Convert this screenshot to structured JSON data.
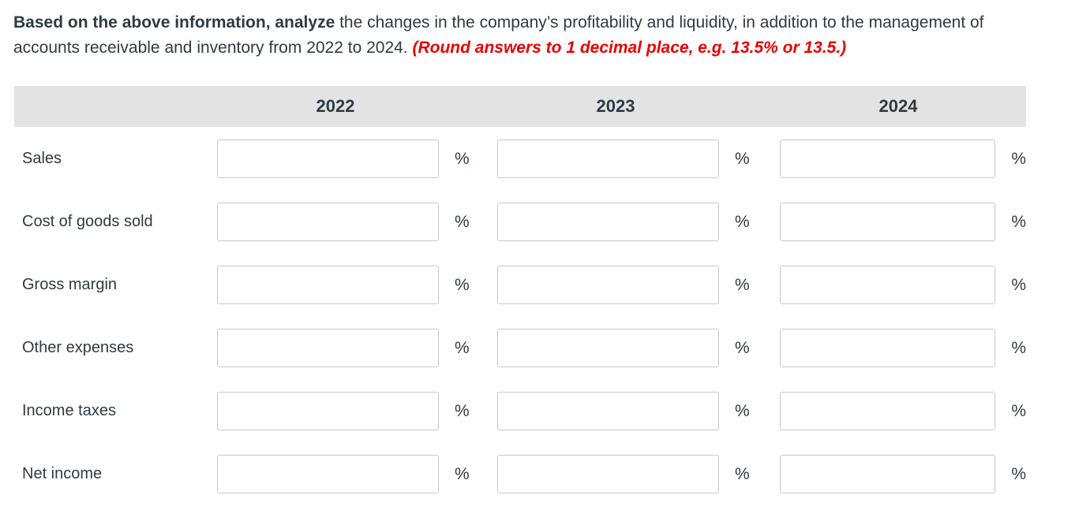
{
  "instructions": {
    "lead_bold": "Based on the above information, analyze",
    "line1_rest": " the changes in the company’s profitability and liquidity, in addition to the management of",
    "line2": "accounts receivable and inventory from 2022 to 2024. ",
    "note": "(Round answers to 1 decimal place, e.g. 13.5% or 13.5.)"
  },
  "table": {
    "year_headers": [
      "2022",
      "2023",
      "2024"
    ],
    "percent_label": "%",
    "rows": [
      {
        "id": "sales",
        "label": "Sales",
        "values": {
          "2022": "",
          "2023": "",
          "2024": ""
        }
      },
      {
        "id": "cost-of-goods-sold",
        "label": "Cost of goods sold",
        "values": {
          "2022": "",
          "2023": "",
          "2024": ""
        }
      },
      {
        "id": "gross-margin",
        "label": "Gross margin",
        "values": {
          "2022": "",
          "2023": "",
          "2024": ""
        }
      },
      {
        "id": "other-expenses",
        "label": "Other expenses",
        "values": {
          "2022": "",
          "2023": "",
          "2024": ""
        }
      },
      {
        "id": "income-taxes",
        "label": "Income taxes",
        "values": {
          "2022": "",
          "2023": "",
          "2024": ""
        }
      },
      {
        "id": "net-income",
        "label": "Net income",
        "values": {
          "2022": "",
          "2023": "",
          "2024": ""
        }
      }
    ]
  },
  "colors": {
    "text": "#2d3b45",
    "note_red": "#e80000",
    "header_band": "#e3e3e3",
    "input_border": "#c9c9c9"
  }
}
